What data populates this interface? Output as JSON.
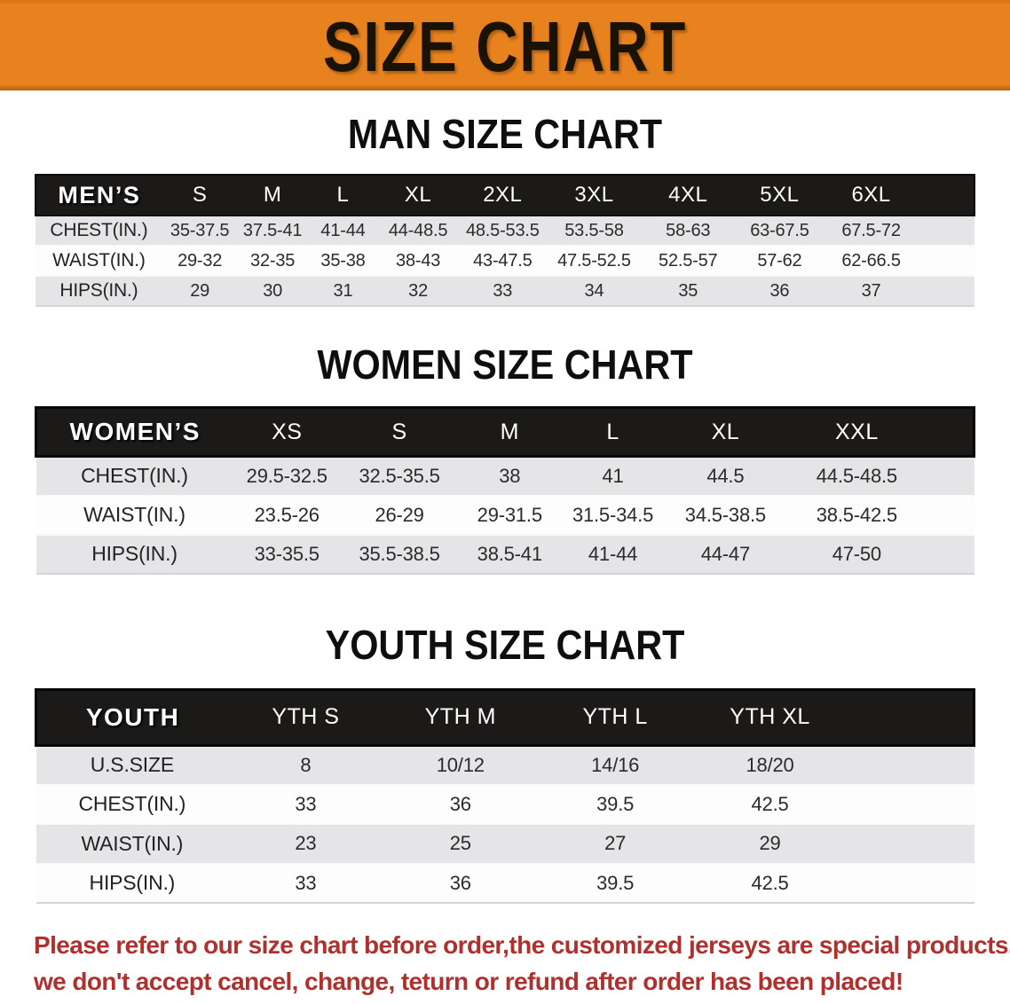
{
  "banner": {
    "title": "SIZE CHART"
  },
  "colors": {
    "banner_bg": "#e8821e",
    "banner_text": "#1b1206",
    "table_header_bg": "#1c1a19",
    "table_header_text": "#ffffff",
    "row_alt_bg": "#e5e5e7",
    "row_base_bg": "#fdfdfd",
    "body_text": "#2b2b2b",
    "disclaimer_red": "#ae312e"
  },
  "sections": [
    {
      "heading": "MAN SIZE CHART",
      "table": {
        "header": [
          "MEN’S",
          "S",
          "M",
          "L",
          "XL",
          "2XL",
          "3XL",
          "4XL",
          "5XL",
          "6XL"
        ],
        "rows": [
          [
            "CHEST(IN.)",
            "35-37.5",
            "37.5-41",
            "41-44",
            "44-48.5",
            "48.5-53.5",
            "53.5-58",
            "58-63",
            "63-67.5",
            "67.5-72"
          ],
          [
            "WAIST(IN.)",
            "29-32",
            "32-35",
            "35-38",
            "38-43",
            "43-47.5",
            "47.5-52.5",
            "52.5-57",
            "57-62",
            "62-66.5"
          ],
          [
            "HIPS(IN.)",
            "29",
            "30",
            "31",
            "32",
            "33",
            "34",
            "35",
            "36",
            "37"
          ]
        ]
      }
    },
    {
      "heading": "WOMEN SIZE CHART",
      "table": {
        "header": [
          "WOMEN’S",
          "XS",
          "S",
          "M",
          "L",
          "XL",
          "XXL"
        ],
        "rows": [
          [
            "CHEST(IN.)",
            "29.5-32.5",
            "32.5-35.5",
            "38",
            "41",
            "44.5",
            "44.5-48.5"
          ],
          [
            "WAIST(IN.)",
            "23.5-26",
            "26-29",
            "29-31.5",
            "31.5-34.5",
            "34.5-38.5",
            "38.5-42.5"
          ],
          [
            "HIPS(IN.)",
            "33-35.5",
            "35.5-38.5",
            "38.5-41",
            "41-44",
            "44-47",
            "47-50"
          ]
        ]
      }
    },
    {
      "heading": "YOUTH SIZE CHART",
      "table": {
        "header": [
          "YOUTH",
          "YTH S",
          "YTH M",
          "YTH L",
          "YTH XL"
        ],
        "rows": [
          [
            "U.S.SIZE",
            "8",
            "10/12",
            "14/16",
            "18/20"
          ],
          [
            "CHEST(IN.)",
            "33",
            "36",
            "39.5",
            "42.5"
          ],
          [
            "WAIST(IN.)",
            "23",
            "25",
            "27",
            "29"
          ],
          [
            "HIPS(IN.)",
            "33",
            "36",
            "39.5",
            "42.5"
          ]
        ]
      }
    }
  ],
  "disclaimer": {
    "lines": [
      "Please refer to our size chart before order,the customized jerseys are special products,",
      "we don't accept cancel, change, teturn or refund after order has been placed!"
    ]
  }
}
